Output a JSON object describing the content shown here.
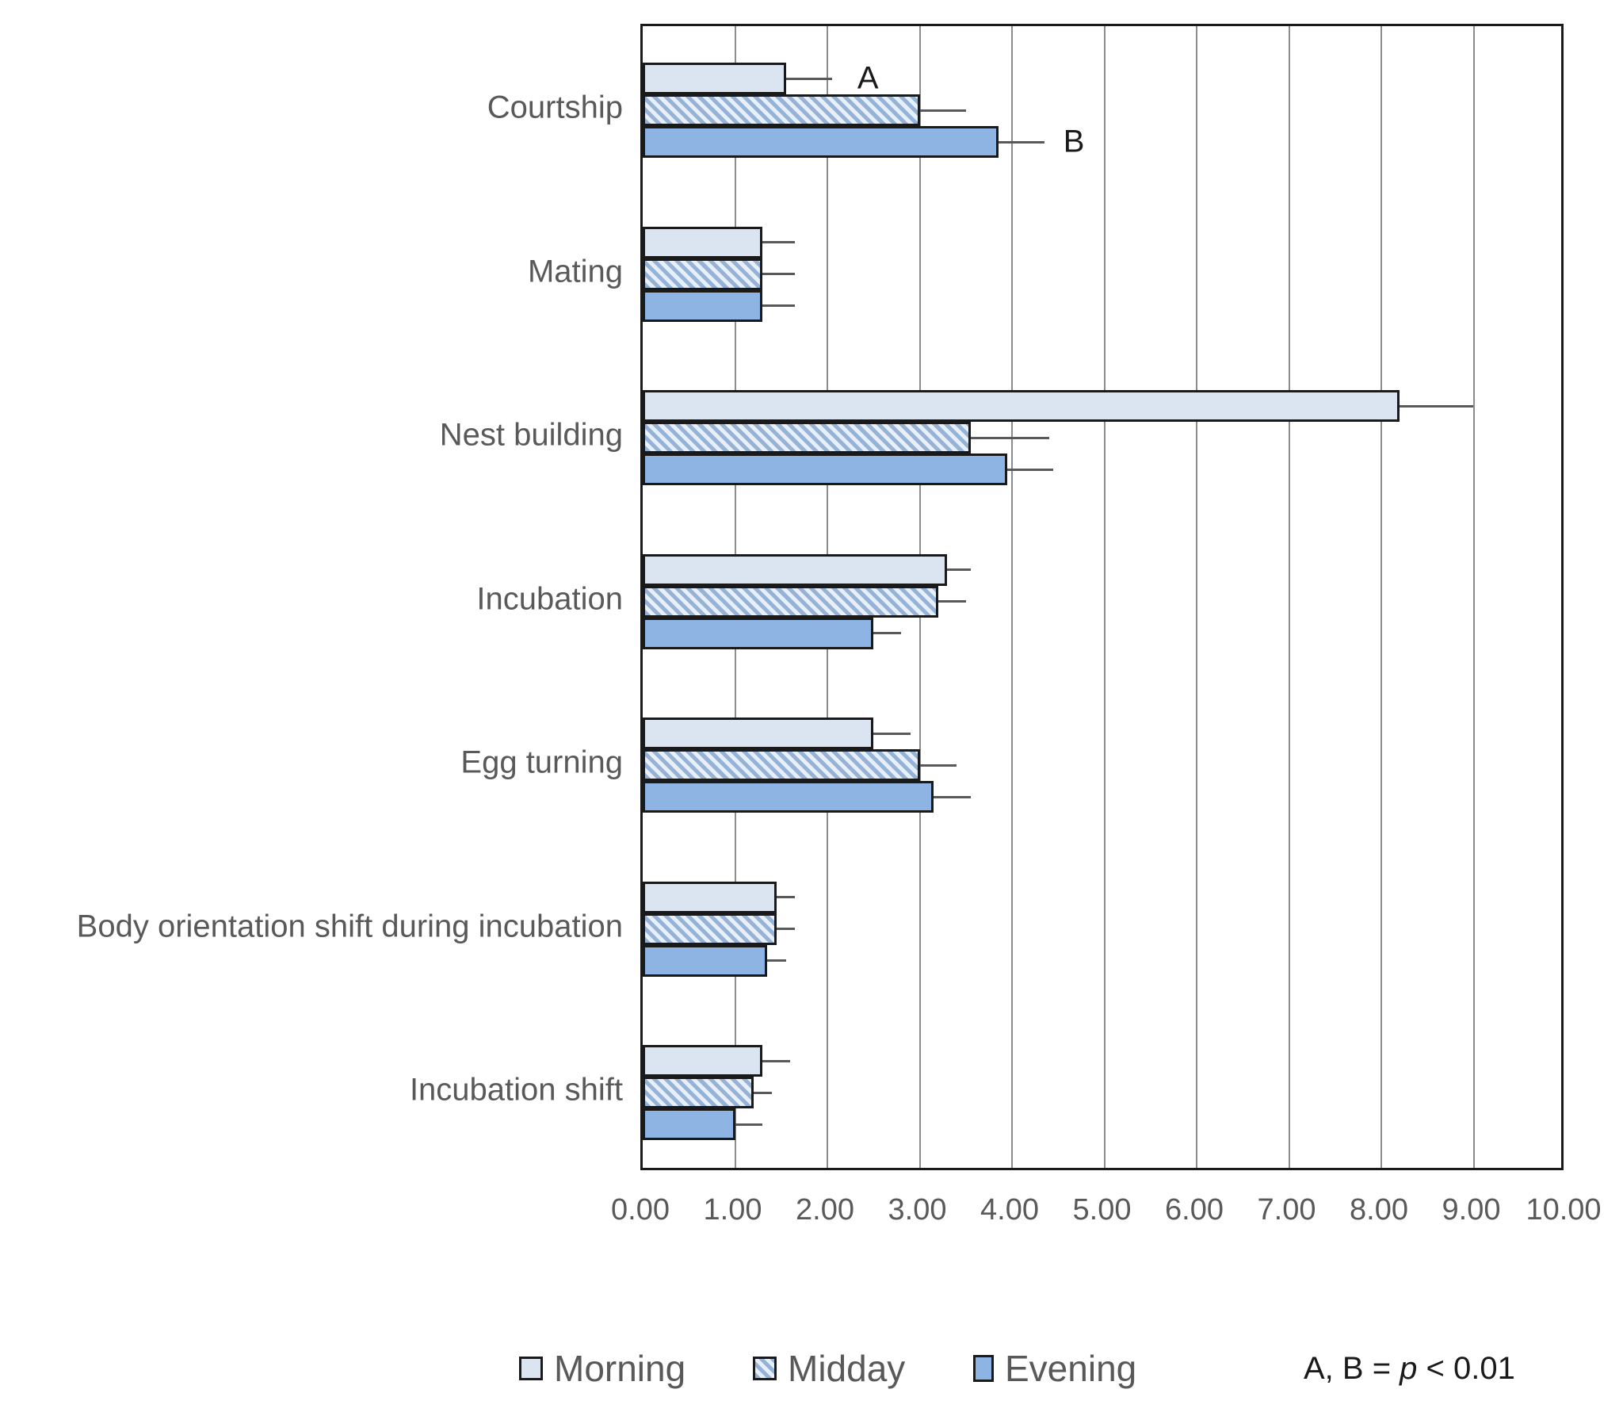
{
  "chart_data": {
    "type": "bar",
    "orientation": "horizontal",
    "title": "",
    "xlabel": "",
    "ylabel": "",
    "xlim": [
      0,
      10
    ],
    "x_tick_labels": [
      "0.00",
      "1.00",
      "2.00",
      "3.00",
      "4.00",
      "5.00",
      "6.00",
      "7.00",
      "8.00",
      "9.00",
      "10.00"
    ],
    "grid": "vertical",
    "legend_position": "bottom",
    "categories": [
      "Courtship",
      "Mating",
      "Nest building",
      "Incubation",
      "Egg turning",
      "Body orientation shift during incubation",
      "Incubation shift"
    ],
    "series": [
      {
        "name": "Morning",
        "values": [
          1.55,
          1.3,
          8.2,
          3.3,
          2.5,
          1.45,
          1.3
        ],
        "error_upper": [
          2.05,
          1.65,
          9.0,
          3.55,
          2.9,
          1.65,
          1.6
        ]
      },
      {
        "name": "Midday",
        "values": [
          3.0,
          1.3,
          3.55,
          3.2,
          3.0,
          1.45,
          1.2
        ],
        "error_upper": [
          3.5,
          1.65,
          4.4,
          3.5,
          3.4,
          1.65,
          1.4
        ]
      },
      {
        "name": "Evening",
        "values": [
          3.85,
          1.3,
          3.95,
          2.5,
          3.15,
          1.35,
          1.0
        ],
        "error_upper": [
          4.35,
          1.65,
          4.45,
          2.8,
          3.55,
          1.55,
          1.3
        ]
      }
    ],
    "annotations": [
      {
        "text": "A",
        "category": "Courtship",
        "series": "Morning",
        "x": 2.44
      },
      {
        "text": "B",
        "category": "Courtship",
        "series": "Evening",
        "x": 4.67
      }
    ],
    "note": "A, B = p < 0.01",
    "colors": {
      "morning_fill": "#dbe5f1",
      "midday_stripe": "#95b3d7",
      "midday_bg": "#e9eff8",
      "evening_fill": "#8db4e2",
      "bar_border": "#1a1a1a",
      "gridline": "#8c8c8c",
      "axis_text": "#595959",
      "error_bar": "#595959",
      "annotation_text": "#1a1a1a"
    }
  },
  "legend": {
    "items": [
      {
        "label": "Morning"
      },
      {
        "label": "Midday"
      },
      {
        "label": "Evening"
      }
    ],
    "note_prefix": "A, B = ",
    "note_p": "p",
    "note_suffix": " < 0.01"
  }
}
